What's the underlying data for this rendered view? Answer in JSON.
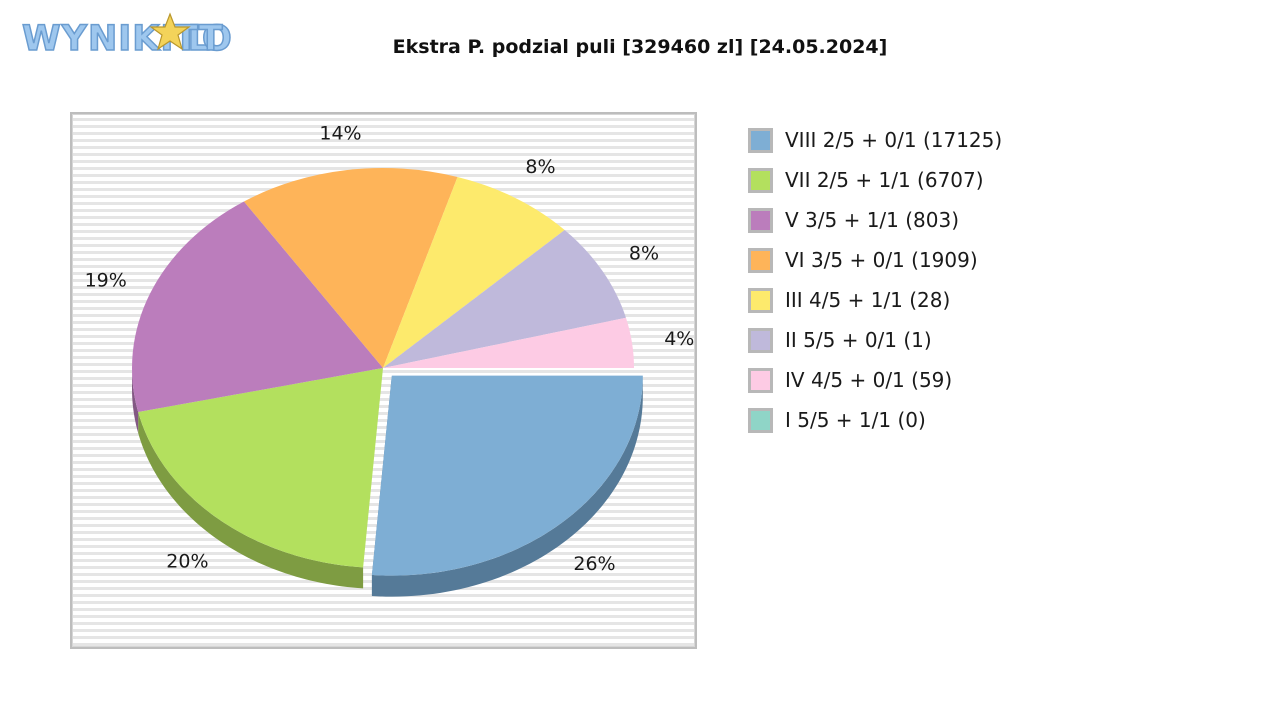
{
  "logo": {
    "text": "WYNIKI LOTTO"
  },
  "chart_data": {
    "type": "pie",
    "title": "Ekstra P. podzial puli [329460 zl] [24.05.2024]",
    "slices": [
      {
        "label": "VIII 2/5 + 0/1 (17125)",
        "percent": 26,
        "pct_label": "26%",
        "color": "#7eaed4",
        "side_color": "#557a98",
        "exploded": true
      },
      {
        "label": "VII 2/5 + 1/1 (6707)",
        "percent": 20,
        "pct_label": "20%",
        "color": "#b3e05e",
        "side_color": "#7e9c42"
      },
      {
        "label": "V 3/5 + 1/1 (803)",
        "percent": 19,
        "pct_label": "19%",
        "color": "#bb7dbc",
        "side_color": "#835884"
      },
      {
        "label": "VI 3/5 + 0/1 (1909)",
        "percent": 14,
        "pct_label": "14%",
        "color": "#feb459",
        "side_color": "#b27e3e"
      },
      {
        "label": "III 4/5 + 1/1 (28)",
        "percent": 8,
        "pct_label": "8%",
        "color": "#fdea6c",
        "side_color": "#b1a44c"
      },
      {
        "label": "II 5/5 + 0/1 (1)",
        "percent": 8,
        "pct_label": "8%",
        "color": "#bfb9db",
        "side_color": "#868199"
      },
      {
        "label": "IV 4/5 + 0/1 (59)",
        "percent": 4,
        "pct_label": "4%",
        "color": "#fdcbe4",
        "side_color": "#b18ea0"
      },
      {
        "label": "I 5/5 + 1/1 (0)",
        "percent": 0,
        "pct_label": "",
        "color": "#8fd5c7",
        "side_color": "#64958b"
      }
    ],
    "legend_position": "right"
  }
}
